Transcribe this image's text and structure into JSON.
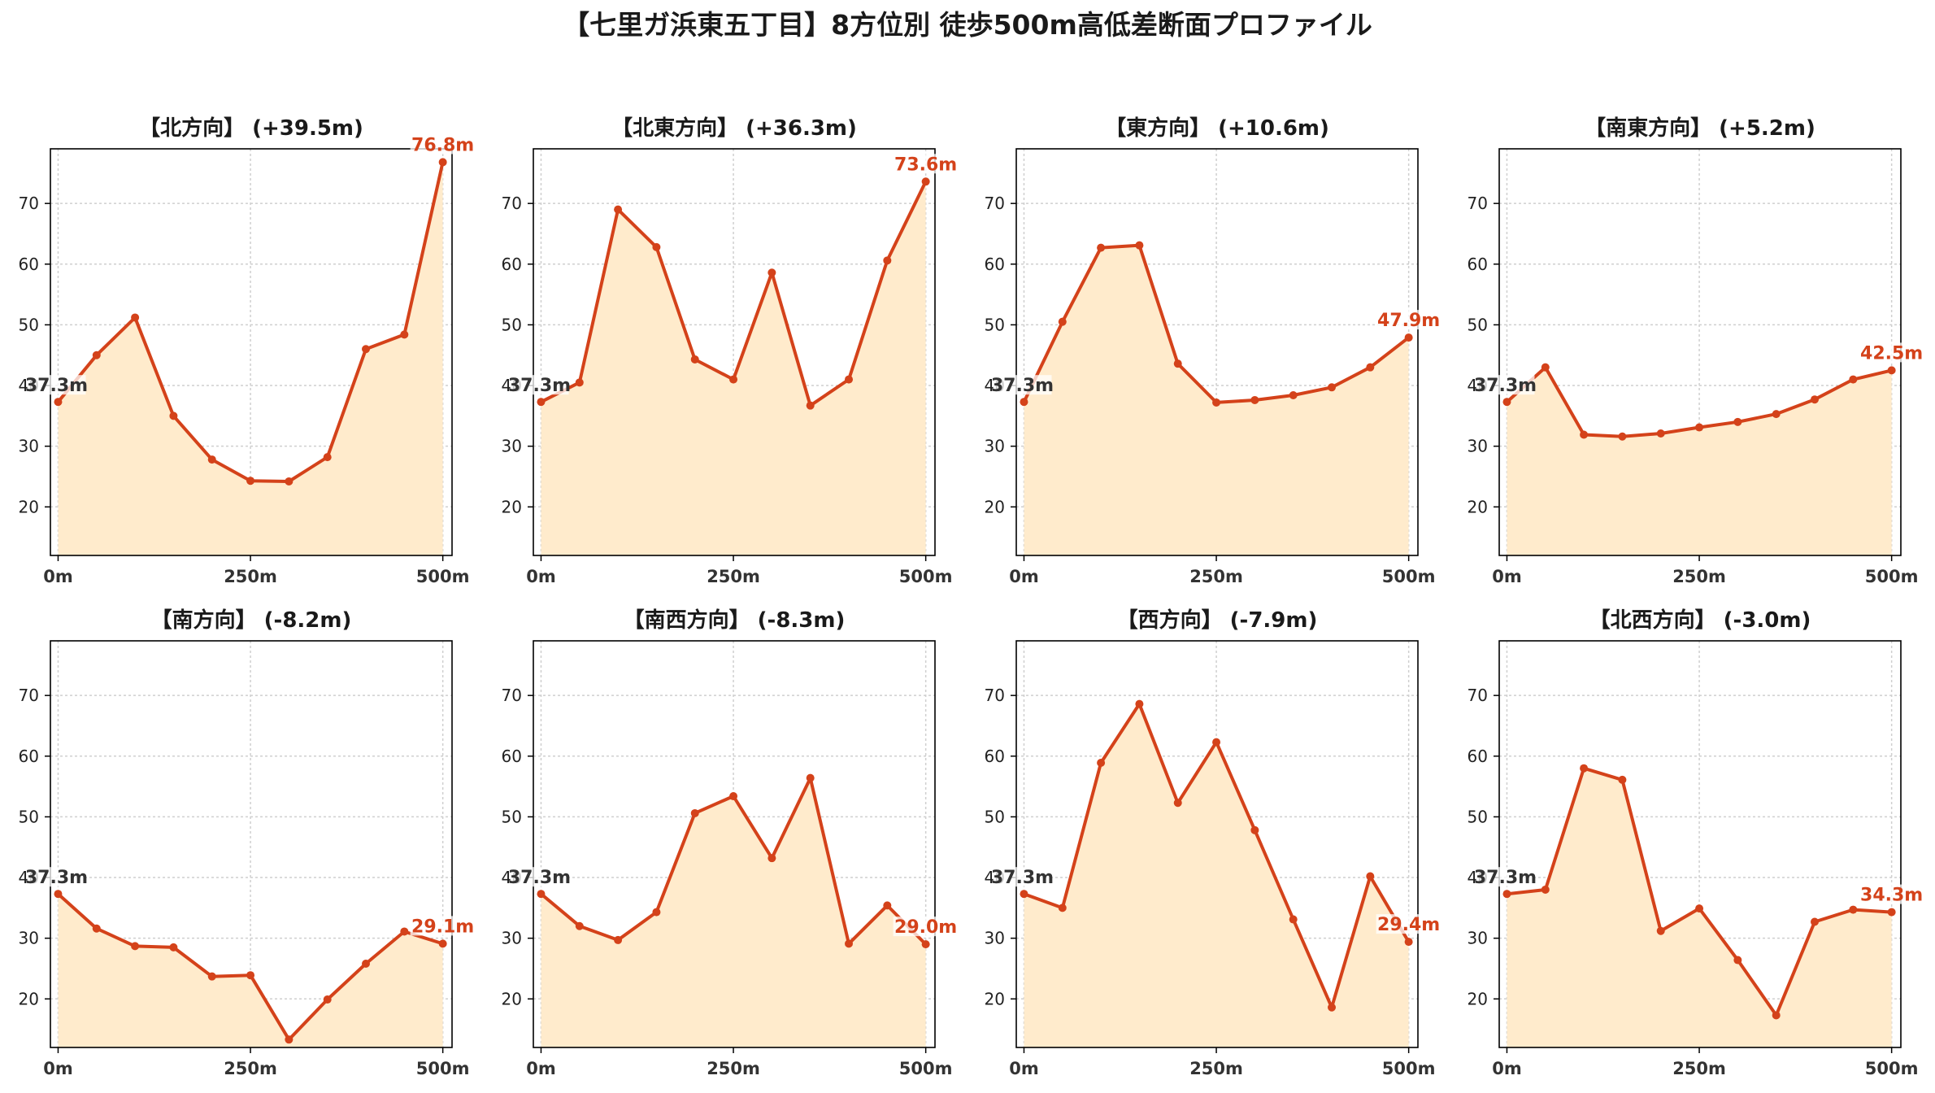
{
  "figure": {
    "title": "【七里ガ浜東五丁目】8方位別 徒歩500m高低差断面プロファイル"
  },
  "colors": {
    "line": "#d4421a",
    "fill": "#ffebcc",
    "start_label": "#333333",
    "end_label": "#d4421a",
    "grid": "#cfcfcf",
    "axis": "#000000"
  },
  "chart_data": [
    {
      "type": "area",
      "title": "【北方向】 (+39.5m)",
      "x": [
        0,
        50,
        100,
        150,
        200,
        250,
        300,
        350,
        400,
        450,
        500
      ],
      "values": [
        37.3,
        45.0,
        51.2,
        35.0,
        27.8,
        24.3,
        24.2,
        28.2,
        46.0,
        48.4,
        76.8
      ],
      "xticks": [
        "0m",
        "250m",
        "500m"
      ],
      "xtick_values": [
        0,
        250,
        500
      ],
      "yticks": [
        20,
        30,
        40,
        50,
        60,
        70
      ],
      "xlim": [
        -10,
        512
      ],
      "ylim": [
        12,
        79
      ],
      "start_label": "37.3m",
      "end_label": "76.8m",
      "grid": true
    },
    {
      "type": "area",
      "title": "【北東方向】 (+36.3m)",
      "x": [
        0,
        50,
        100,
        150,
        200,
        250,
        300,
        350,
        400,
        450,
        500
      ],
      "values": [
        37.3,
        40.5,
        69.0,
        62.8,
        44.3,
        41.0,
        58.6,
        36.7,
        41.0,
        60.6,
        73.6
      ],
      "xticks": [
        "0m",
        "250m",
        "500m"
      ],
      "xtick_values": [
        0,
        250,
        500
      ],
      "yticks": [
        20,
        30,
        40,
        50,
        60,
        70
      ],
      "xlim": [
        -10,
        512
      ],
      "ylim": [
        12,
        79
      ],
      "start_label": "37.3m",
      "end_label": "73.6m",
      "grid": true
    },
    {
      "type": "area",
      "title": "【東方向】 (+10.6m)",
      "x": [
        0,
        50,
        100,
        150,
        200,
        250,
        300,
        350,
        400,
        450,
        500
      ],
      "values": [
        37.3,
        50.5,
        62.7,
        63.1,
        43.6,
        37.2,
        37.6,
        38.4,
        39.7,
        43.0,
        47.9
      ],
      "xticks": [
        "0m",
        "250m",
        "500m"
      ],
      "xtick_values": [
        0,
        250,
        500
      ],
      "yticks": [
        20,
        30,
        40,
        50,
        60,
        70
      ],
      "xlim": [
        -10,
        512
      ],
      "ylim": [
        12,
        79
      ],
      "start_label": "37.3m",
      "end_label": "47.9m",
      "grid": true
    },
    {
      "type": "area",
      "title": "【南東方向】 (+5.2m)",
      "x": [
        0,
        50,
        100,
        150,
        200,
        250,
        300,
        350,
        400,
        450,
        500
      ],
      "values": [
        37.3,
        43.0,
        31.9,
        31.6,
        32.1,
        33.1,
        34.0,
        35.3,
        37.7,
        41.0,
        42.5
      ],
      "xticks": [
        "0m",
        "250m",
        "500m"
      ],
      "xtick_values": [
        0,
        250,
        500
      ],
      "yticks": [
        20,
        30,
        40,
        50,
        60,
        70
      ],
      "xlim": [
        -10,
        512
      ],
      "ylim": [
        12,
        79
      ],
      "start_label": "37.3m",
      "end_label": "42.5m",
      "grid": true
    },
    {
      "type": "area",
      "title": "【南方向】 (-8.2m)",
      "x": [
        0,
        50,
        100,
        150,
        200,
        250,
        300,
        350,
        400,
        450,
        500
      ],
      "values": [
        37.3,
        31.6,
        28.7,
        28.5,
        23.7,
        23.9,
        13.3,
        19.9,
        25.8,
        31.1,
        29.1
      ],
      "xticks": [
        "0m",
        "250m",
        "500m"
      ],
      "xtick_values": [
        0,
        250,
        500
      ],
      "yticks": [
        20,
        30,
        40,
        50,
        60,
        70
      ],
      "xlim": [
        -10,
        512
      ],
      "ylim": [
        12,
        79
      ],
      "start_label": "37.3m",
      "end_label": "29.1m",
      "grid": true
    },
    {
      "type": "area",
      "title": "【南西方向】 (-8.3m)",
      "x": [
        0,
        50,
        100,
        150,
        200,
        250,
        300,
        350,
        400,
        450,
        500
      ],
      "values": [
        37.3,
        32.0,
        29.7,
        34.3,
        50.6,
        53.4,
        43.2,
        56.4,
        29.1,
        35.4,
        29.0
      ],
      "xticks": [
        "0m",
        "250m",
        "500m"
      ],
      "xtick_values": [
        0,
        250,
        500
      ],
      "yticks": [
        20,
        30,
        40,
        50,
        60,
        70
      ],
      "xlim": [
        -10,
        512
      ],
      "ylim": [
        12,
        79
      ],
      "start_label": "37.3m",
      "end_label": "29.0m",
      "grid": true
    },
    {
      "type": "area",
      "title": "【西方向】 (-7.9m)",
      "x": [
        0,
        50,
        100,
        150,
        200,
        250,
        300,
        350,
        400,
        450,
        500
      ],
      "values": [
        37.3,
        35.0,
        58.9,
        68.6,
        52.3,
        62.3,
        47.8,
        33.1,
        18.6,
        40.2,
        29.4
      ],
      "xticks": [
        "0m",
        "250m",
        "500m"
      ],
      "xtick_values": [
        0,
        250,
        500
      ],
      "yticks": [
        20,
        30,
        40,
        50,
        60,
        70
      ],
      "xlim": [
        -10,
        512
      ],
      "ylim": [
        12,
        79
      ],
      "start_label": "37.3m",
      "end_label": "29.4m",
      "grid": true
    },
    {
      "type": "area",
      "title": "【北西方向】 (-3.0m)",
      "x": [
        0,
        50,
        100,
        150,
        200,
        250,
        300,
        350,
        400,
        450,
        500
      ],
      "values": [
        37.3,
        38.0,
        58.0,
        56.1,
        31.2,
        34.9,
        26.4,
        17.3,
        32.7,
        34.7,
        34.3
      ],
      "xticks": [
        "0m",
        "250m",
        "500m"
      ],
      "xtick_values": [
        0,
        250,
        500
      ],
      "yticks": [
        20,
        30,
        40,
        50,
        60,
        70
      ],
      "xlim": [
        -10,
        512
      ],
      "ylim": [
        12,
        79
      ],
      "start_label": "37.3m",
      "end_label": "34.3m",
      "grid": true
    }
  ]
}
